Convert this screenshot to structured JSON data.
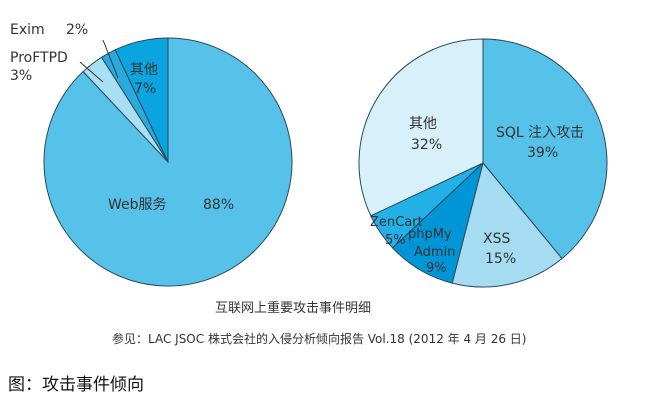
{
  "chart_data": [
    {
      "type": "pie",
      "name": "left",
      "slices": [
        {
          "label": "Web服务",
          "value_label": "88%",
          "value": 88,
          "color": "#56c2ea"
        },
        {
          "label": "ProFTPD",
          "value_label": "3%",
          "value": 3,
          "color": "#a9dff3"
        },
        {
          "label": "Exim",
          "value_label": "2%",
          "value": 2,
          "color": "#29a9dc"
        },
        {
          "label": "其他",
          "value_label": "7%",
          "value": 7,
          "color": "#0aa4e0"
        }
      ]
    },
    {
      "type": "pie",
      "name": "right",
      "slices": [
        {
          "label": "SQL 注入攻击",
          "value_label": "39%",
          "value": 39,
          "color": "#56c2ea"
        },
        {
          "label": "XSS",
          "value_label": "15%",
          "value": 15,
          "color": "#a6dcf2"
        },
        {
          "label": "phpMy Admin",
          "value_label": "9%",
          "value": 9,
          "color": "#0095d6"
        },
        {
          "label": "ZenCart",
          "value_label": "5%",
          "value": 5,
          "color": "#22b0e6"
        },
        {
          "label": "其他",
          "value_label": "32%",
          "value": 32,
          "color": "#d8f0fa"
        }
      ]
    }
  ],
  "subtitle": "互联网上重要攻击事件明细",
  "source": "参见：LAC JSOC 株式会社的入侵分析倾向报告 Vol.18 (2012 年 4 月 26 日)",
  "caption": "图：攻击事件倾向"
}
